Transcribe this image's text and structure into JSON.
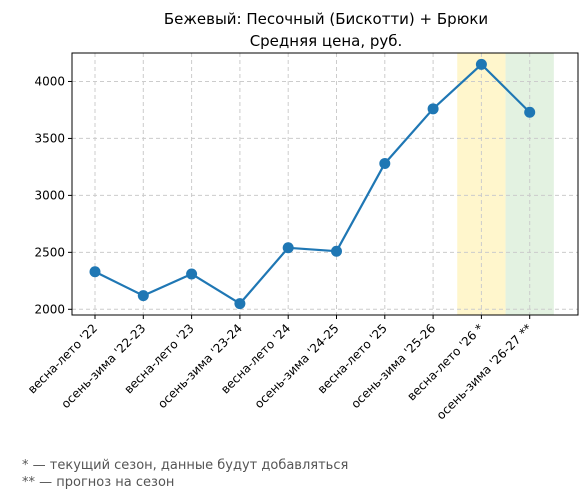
{
  "chart_data": {
    "type": "line",
    "title": "Бежевый: Песочный (Бискотти) + Брюки",
    "subtitle": "Средняя цена, руб.",
    "xlabel": "",
    "ylabel": "",
    "categories": [
      "весна-лето '22",
      "осень-зима '22-23",
      "весна-лето '23",
      "осень-зима '23-24",
      "весна-лето '24",
      "осень-зима '24-25",
      "весна-лето '25",
      "осень-зима '25-26",
      "весна-лето '26 *",
      "осень-зима '26-27 **"
    ],
    "series": [
      {
        "values": [
          2330,
          2120,
          2310,
          2050,
          2540,
          2510,
          3280,
          3760,
          4150,
          3730
        ],
        "color": "#1f77b4"
      }
    ],
    "ylim": [
      1950,
      4250
    ],
    "yticks": [
      2000,
      2500,
      3000,
      3500,
      4000
    ],
    "grid": true,
    "shaded_regions": [
      {
        "category_index": 8,
        "color": "#fff6cc"
      },
      {
        "category_index": 9,
        "color": "#e3f2e1"
      }
    ]
  },
  "footnotes": [
    "* — текущий сезон, данные будут добавляться",
    "** — прогноз на сезон"
  ]
}
